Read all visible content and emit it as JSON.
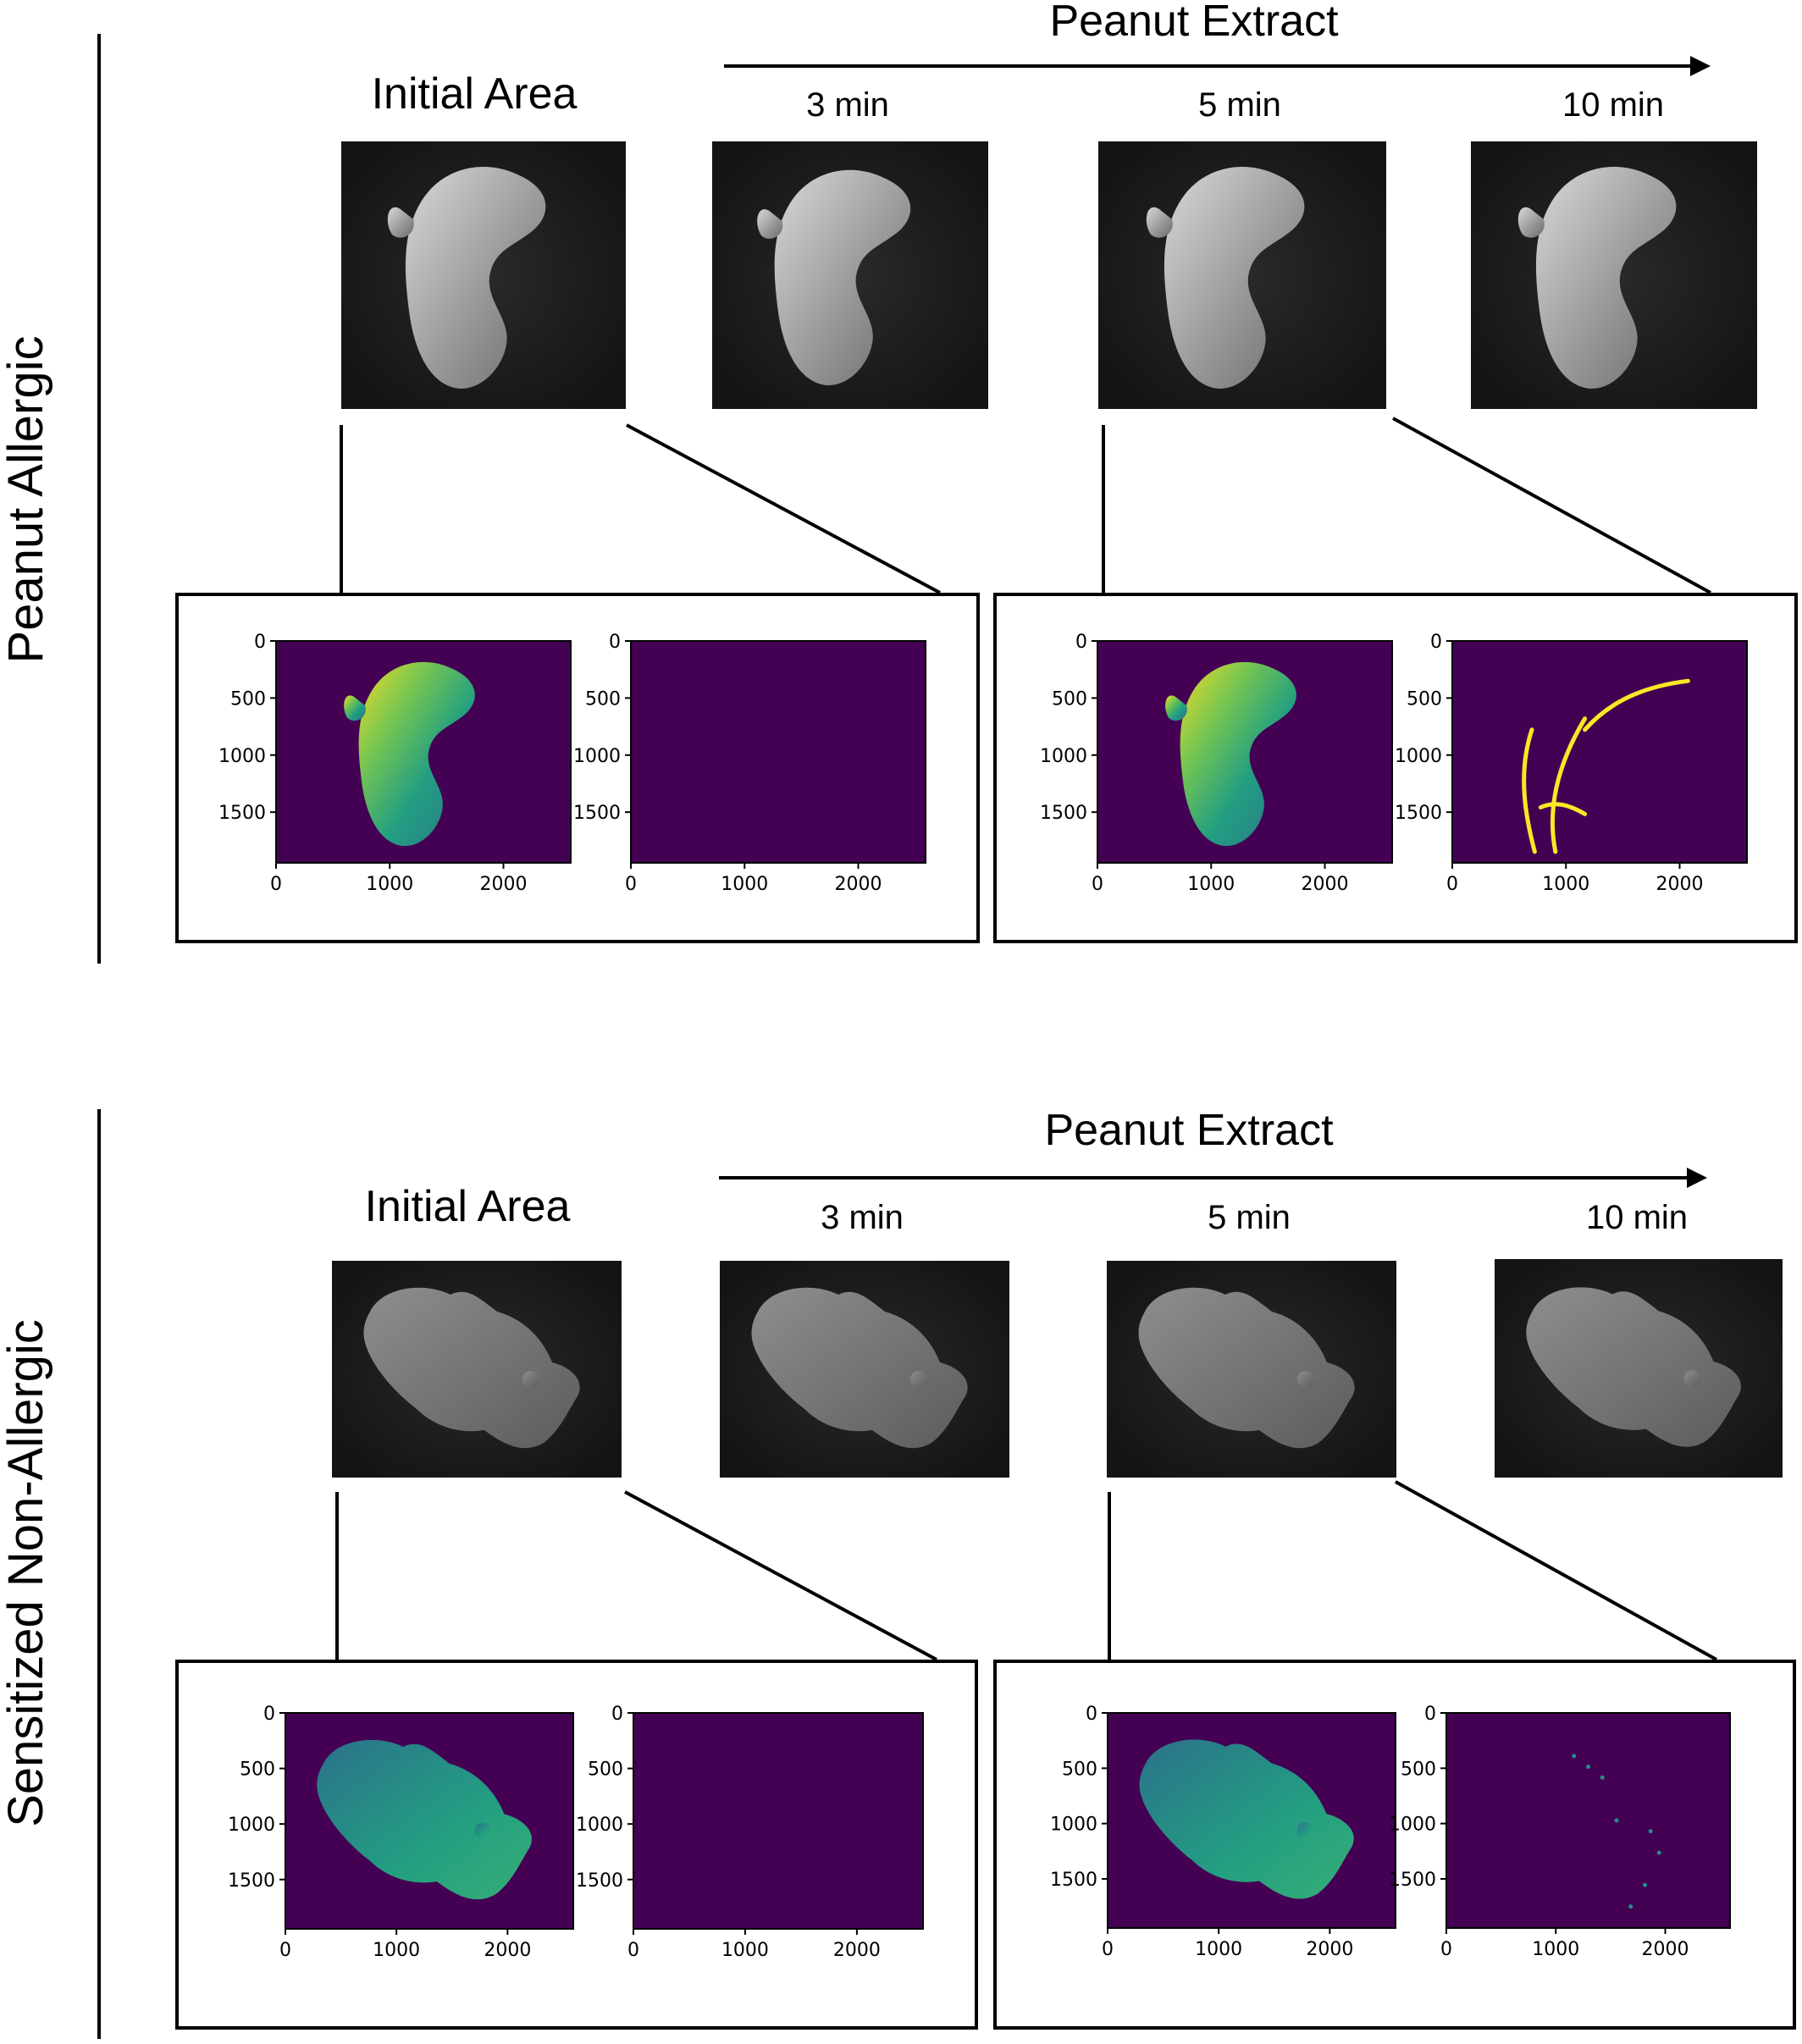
{
  "rows": [
    {
      "group_label": "Peanut Allergic",
      "initial_label": "Initial Area",
      "extract_label": "Peanut Extract",
      "time_labels": [
        "3 min",
        "5 min",
        "10 min"
      ],
      "specimen": "lobe",
      "left_box": {
        "intensity_plot": {
          "x_ticks": [
            "0",
            "1000",
            "2000"
          ],
          "y_ticks": [
            "0",
            "500",
            "1000",
            "1500"
          ],
          "x_range": [
            0,
            2592
          ],
          "y_range": [
            0,
            1944
          ]
        },
        "change_plot": {
          "x_ticks": [
            "0",
            "1000",
            "2000"
          ],
          "y_ticks": [
            "0",
            "500",
            "1000",
            "1500"
          ],
          "x_range": [
            0,
            2592
          ],
          "y_range": [
            0,
            1944
          ]
        }
      },
      "right_box": {
        "intensity_plot": {
          "x_ticks": [
            "0",
            "1000",
            "2000"
          ],
          "y_ticks": [
            "0",
            "500",
            "1000",
            "1500"
          ],
          "x_range": [
            0,
            2592
          ],
          "y_range": [
            0,
            1944
          ]
        },
        "change_plot": {
          "x_ticks": [
            "0",
            "1000",
            "2000"
          ],
          "y_ticks": [
            "0",
            "500",
            "1000",
            "1500"
          ],
          "x_range": [
            0,
            2592
          ],
          "y_range": [
            0,
            1944
          ]
        }
      }
    },
    {
      "group_label": "Sensitized Non-Allergic",
      "initial_label": "Initial Area",
      "extract_label": "Peanut Extract",
      "time_labels": [
        "3 min",
        "5 min",
        "10 min"
      ],
      "specimen": "blob",
      "left_box": {
        "intensity_plot": {
          "x_ticks": [
            "0",
            "1000",
            "2000"
          ],
          "y_ticks": [
            "0",
            "500",
            "1000",
            "1500"
          ],
          "x_range": [
            0,
            2592
          ],
          "y_range": [
            0,
            1944
          ]
        },
        "change_plot": {
          "x_ticks": [
            "0",
            "1000",
            "2000"
          ],
          "y_ticks": [
            "0",
            "500",
            "1000",
            "1500"
          ],
          "x_range": [
            0,
            2592
          ],
          "y_range": [
            0,
            1944
          ]
        }
      },
      "right_box": {
        "intensity_plot": {
          "x_ticks": [
            "0",
            "1000",
            "2000"
          ],
          "y_ticks": [
            "0",
            "500",
            "1000",
            "1500"
          ],
          "x_range": [
            0,
            2592
          ],
          "y_range": [
            0,
            1944
          ]
        },
        "change_plot": {
          "x_ticks": [
            "0",
            "1000",
            "2000"
          ],
          "y_ticks": [
            "0",
            "500",
            "1000",
            "1500"
          ],
          "x_range": [
            0,
            2592
          ],
          "y_range": [
            0,
            1944
          ]
        }
      }
    }
  ],
  "colors": {
    "colormap": "viridis",
    "viridis_background": "#440154",
    "viridis_mid": "#21918c",
    "viridis_high": "#fde725",
    "photo_background": "#1c1c1c",
    "ink": "#000000"
  }
}
